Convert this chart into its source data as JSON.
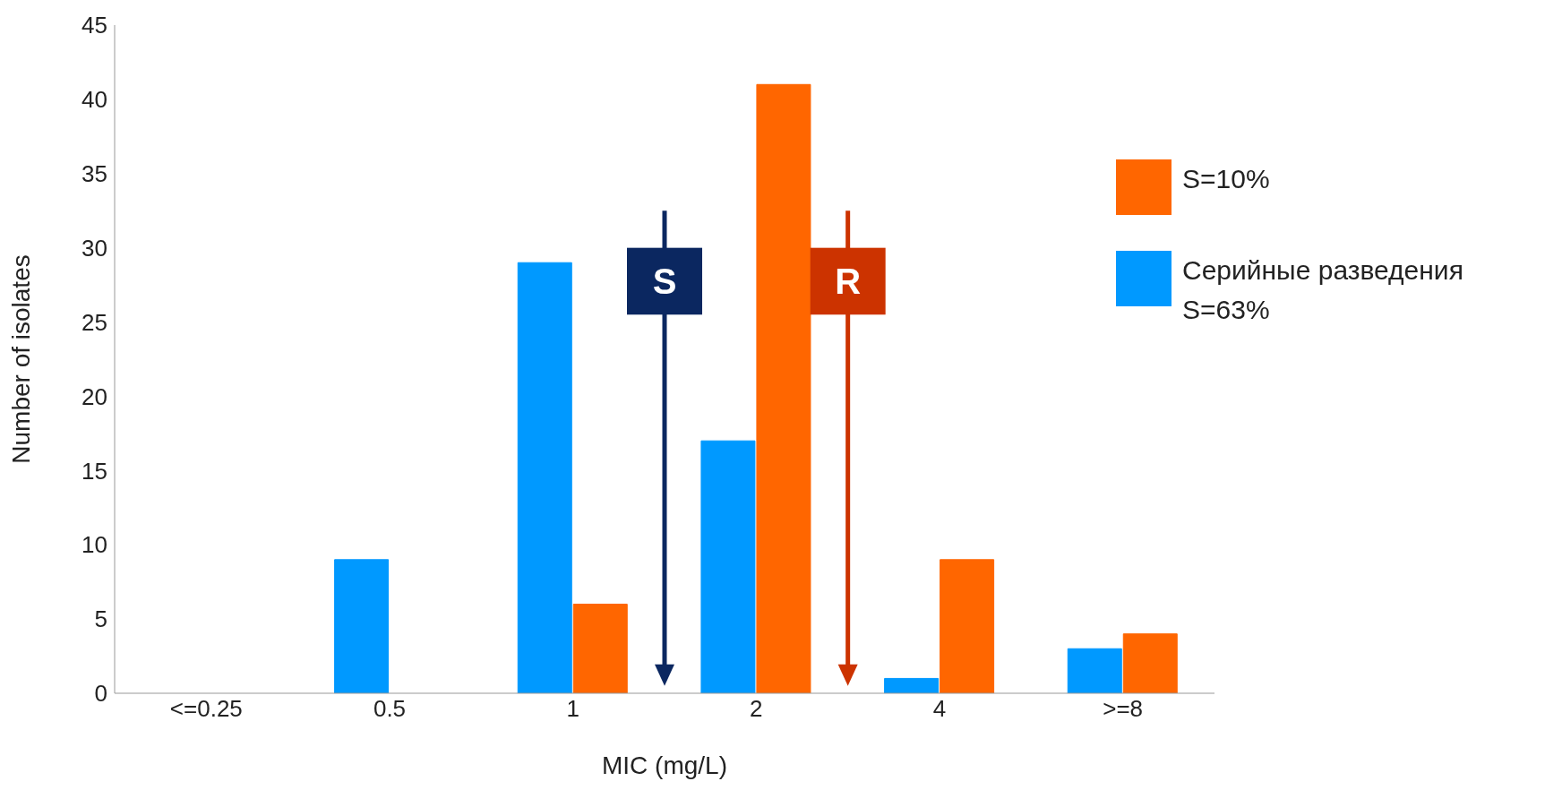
{
  "chart_data": {
    "type": "bar",
    "xlabel": "MIC (mg/L)",
    "ylabel": "Number of isolates",
    "categories": [
      "<=0.25",
      "0.5",
      "1",
      "2",
      "4",
      ">=8"
    ],
    "series": [
      {
        "name": "Серийные разведения S=63%",
        "color": "#0099ff",
        "values": [
          0,
          9,
          29,
          17,
          1,
          3
        ]
      },
      {
        "name": "S=10%",
        "color": "#ff6600",
        "values": [
          0,
          0,
          6,
          41,
          9,
          4
        ]
      }
    ],
    "ylim": [
      0,
      45
    ],
    "yticks": [
      0,
      5,
      10,
      15,
      20,
      25,
      30,
      35,
      40,
      45
    ],
    "legend": "right",
    "annotations": [
      "S",
      "R"
    ]
  }
}
